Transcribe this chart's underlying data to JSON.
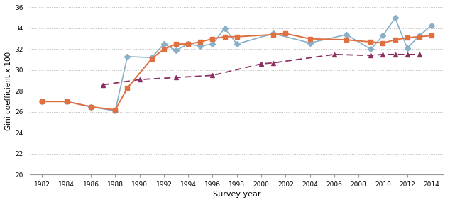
{
  "smoothed_years": [
    1982,
    1984,
    1986,
    1988,
    1989,
    1991,
    1992,
    1993,
    1994,
    1995,
    1996,
    1997,
    1998,
    2001,
    2002,
    2004,
    2007,
    2009,
    2010,
    2011,
    2012,
    2013,
    2014
  ],
  "smoothed_values": [
    27.0,
    27.0,
    26.5,
    26.2,
    28.3,
    31.1,
    32.0,
    32.5,
    32.5,
    32.7,
    33.0,
    33.2,
    33.2,
    33.4,
    33.5,
    33.0,
    32.9,
    32.7,
    32.6,
    32.9,
    33.1,
    33.2,
    33.3
  ],
  "all_years": [
    1982,
    1984,
    1986,
    1988,
    1989,
    1991,
    1992,
    1993,
    1994,
    1995,
    1996,
    1997,
    1998,
    2001,
    2004,
    2007,
    2009,
    2010,
    2011,
    2012,
    2013,
    2014
  ],
  "all_values": [
    27.0,
    27.0,
    26.5,
    26.1,
    31.3,
    31.2,
    32.5,
    31.9,
    32.5,
    32.3,
    32.5,
    34.0,
    32.5,
    33.5,
    32.6,
    33.4,
    32.0,
    33.3,
    35.0,
    32.1,
    33.3,
    34.3
  ],
  "oecd_years": [
    1987,
    1990,
    1993,
    1996,
    2000,
    2001,
    2006,
    2009,
    2010,
    2011,
    2012,
    2013
  ],
  "oecd_values": [
    28.6,
    29.1,
    29.3,
    29.5,
    30.6,
    30.7,
    31.5,
    31.4,
    31.5,
    31.5,
    31.5,
    31.5
  ],
  "smoothed_color": "#E07040",
  "all_color": "#8AB0C8",
  "oecd_color": "#8B3060",
  "xlabel": "Survey year",
  "ylabel": "Gini coefficient x 100",
  "ylim": [
    20,
    36
  ],
  "xlim": [
    1981,
    2015
  ],
  "yticks": [
    20,
    22,
    24,
    26,
    28,
    30,
    32,
    34,
    36
  ],
  "xticks": [
    1982,
    1984,
    1986,
    1988,
    1990,
    1992,
    1994,
    1996,
    1998,
    2000,
    2002,
    2004,
    2006,
    2008,
    2010,
    2012,
    2014
  ],
  "background_color": "#ffffff",
  "grid_color": "#bbbbbb"
}
